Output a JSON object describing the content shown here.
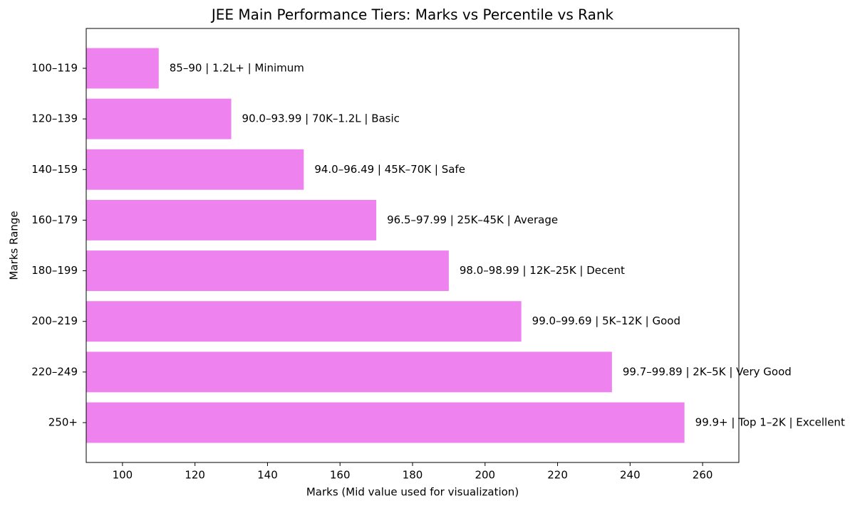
{
  "chart_data": {
    "type": "barh",
    "title": "JEE Main Performance Tiers: Marks vs Percentile vs Rank",
    "x_label": "Marks (Mid value used for visualization)",
    "y_label": "Marks Range",
    "categories": [
      "100–119",
      "120–139",
      "140–159",
      "160–179",
      "180–199",
      "200–219",
      "220–249",
      "250+"
    ],
    "values": [
      110,
      130,
      150,
      170,
      190,
      210,
      235,
      255
    ],
    "annotations": [
      "85–90 | 1.2L+ | Minimum",
      "90.0–93.99 | 70K–1.2L | Basic",
      "94.0–96.49 | 45K–70K | Safe",
      "96.5–97.99 | 25K–45K | Average",
      "98.0–98.99 | 12K–25K | Decent",
      "99.0–99.69 | 5K–12K | Good",
      "99.7–99.89 | 2K–5K | Very Good",
      "99.9+ | Top 1–2K | Excellent"
    ],
    "color": "#ee82ee",
    "xlim": [
      90,
      270
    ],
    "xticks": [
      100,
      120,
      140,
      160,
      180,
      200,
      220,
      240,
      260
    ],
    "grid": false
  }
}
